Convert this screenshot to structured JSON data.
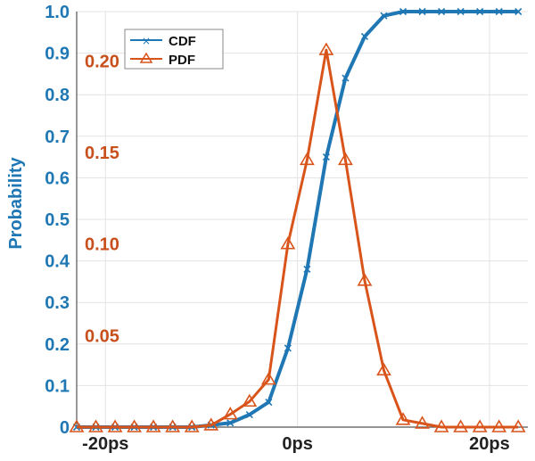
{
  "chart_data": {
    "type": "line",
    "ylabel": "Probability",
    "ylim": [
      0,
      1.0
    ],
    "xlim": [
      -23,
      24
    ],
    "y_ticks": [
      "0",
      "0.1",
      "0.2",
      "0.3",
      "0.4",
      "0.5",
      "0.6",
      "0.7",
      "0.8",
      "0.9",
      "1.0"
    ],
    "x_ticks": [
      {
        "value": -20,
        "label": "-20ps"
      },
      {
        "value": 0,
        "label": "0ps"
      },
      {
        "value": 20,
        "label": "20ps"
      }
    ],
    "pdf_axis_ticks": [
      {
        "value": 0.05,
        "label": "0.05"
      },
      {
        "value": 0.1,
        "label": "0.10"
      },
      {
        "value": 0.15,
        "label": "0.15"
      },
      {
        "value": 0.2,
        "label": "0.20"
      }
    ],
    "pdf_scale_max": 0.227,
    "grid": true,
    "legend_position": "top-left",
    "series": [
      {
        "name": "CDF",
        "color": "#1f77b4",
        "marker": "x",
        "x": [
          -23,
          -21,
          -19,
          -17,
          -15,
          -13,
          -11,
          -9,
          -7,
          -5,
          -3,
          -1,
          1,
          3,
          5,
          7,
          9,
          11,
          13,
          15,
          17,
          19,
          21,
          23
        ],
        "y": [
          0.0,
          0.0,
          0.0,
          0.0,
          0.0,
          0.0,
          0.0,
          0.005,
          0.01,
          0.03,
          0.06,
          0.19,
          0.38,
          0.65,
          0.84,
          0.94,
          0.99,
          1.0,
          1.0,
          1.0,
          1.0,
          1.0,
          1.0,
          1.0
        ]
      },
      {
        "name": "PDF",
        "color": "#d9541a",
        "marker": "triangle",
        "x": [
          -23,
          -21,
          -19,
          -17,
          -15,
          -13,
          -11,
          -9,
          -7,
          -5,
          -3,
          -1,
          1,
          3,
          5,
          7,
          9,
          11,
          13,
          15,
          17,
          19,
          21,
          23
        ],
        "y": [
          0.0,
          0.0,
          0.0,
          0.0,
          0.0,
          0.0,
          0.0,
          0.001,
          0.007,
          0.014,
          0.026,
          0.1,
          0.146,
          0.206,
          0.146,
          0.08,
          0.031,
          0.004,
          0.002,
          0.0,
          0.0,
          0.0,
          0.0,
          0.0
        ]
      }
    ]
  }
}
